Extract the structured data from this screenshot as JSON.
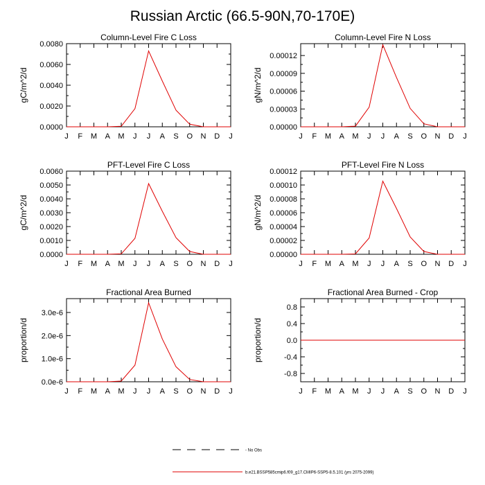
{
  "title": "Russian Arctic (66.5-90N,70-170E)",
  "months": [
    "J",
    "F",
    "M",
    "A",
    "M",
    "J",
    "J",
    "A",
    "S",
    "O",
    "N",
    "D",
    "J"
  ],
  "colors": {
    "series": "#e00000",
    "axis": "#000000"
  },
  "legend": {
    "items": [
      {
        "label": "No Obs",
        "style": "dashed",
        "color": "#000000"
      },
      {
        "label": "b.e21.BSSP585cmip6.f09_g17.CMIP6-SSP5-8.5.101 (yrs 2075-2099)",
        "style": "solid",
        "color": "#e00000"
      }
    ]
  },
  "chart_data": [
    {
      "type": "line",
      "title": "Column-Level Fire C Loss",
      "ylabel": "gC/m^2/d",
      "xlabel": "",
      "ylim": [
        0,
        0.008
      ],
      "yticks": [
        0,
        0.002,
        0.004,
        0.006,
        0.008
      ],
      "ytick_labels": [
        "0.0000",
        "0.0020",
        "0.0040",
        "0.0060",
        "0.0080"
      ],
      "x": [
        "J",
        "F",
        "M",
        "A",
        "M",
        "J",
        "J",
        "A",
        "S",
        "O",
        "N",
        "D",
        "J"
      ],
      "series": [
        {
          "values": [
            0,
            0,
            0,
            0,
            5e-05,
            0.00175,
            0.0073,
            0.0044,
            0.0016,
            0.00025,
            0,
            0,
            0
          ]
        }
      ]
    },
    {
      "type": "line",
      "title": "Column-Level Fire N Loss",
      "ylabel": "gN/m^2/d",
      "xlabel": "",
      "ylim": [
        0,
        0.00014
      ],
      "yticks": [
        0,
        3e-05,
        6e-05,
        9e-05,
        0.00012
      ],
      "ytick_labels": [
        "0.00000",
        "0.00003",
        "0.00006",
        "0.00009",
        "0.00012"
      ],
      "x": [
        "J",
        "F",
        "M",
        "A",
        "M",
        "J",
        "J",
        "A",
        "S",
        "O",
        "N",
        "D",
        "J"
      ],
      "series": [
        {
          "values": [
            0,
            0,
            0,
            0,
            1e-06,
            3.3e-05,
            0.000138,
            8.3e-05,
            3.1e-05,
            5e-06,
            0,
            0,
            0
          ]
        }
      ]
    },
    {
      "type": "line",
      "title": "PFT-Level Fire C Loss",
      "ylabel": "gC/m^2/d",
      "xlabel": "",
      "ylim": [
        0,
        0.006
      ],
      "yticks": [
        0,
        0.001,
        0.002,
        0.003,
        0.004,
        0.005,
        0.006
      ],
      "ytick_labels": [
        "0.0000",
        "0.0010",
        "0.0020",
        "0.0030",
        "0.0040",
        "0.0050",
        "0.0060"
      ],
      "x": [
        "J",
        "F",
        "M",
        "A",
        "M",
        "J",
        "J",
        "A",
        "S",
        "O",
        "N",
        "D",
        "J"
      ],
      "series": [
        {
          "values": [
            0,
            0,
            0,
            0,
            3e-05,
            0.00115,
            0.0051,
            0.0031,
            0.0012,
            0.0002,
            0,
            0,
            0
          ]
        }
      ]
    },
    {
      "type": "line",
      "title": "PFT-Level Fire N Loss",
      "ylabel": "gN/m^2/d",
      "xlabel": "",
      "ylim": [
        0,
        0.00012
      ],
      "yticks": [
        0,
        2e-05,
        4e-05,
        6e-05,
        8e-05,
        0.0001,
        0.00012
      ],
      "ytick_labels": [
        "0.00000",
        "0.00002",
        "0.00004",
        "0.00006",
        "0.00008",
        "0.00010",
        "0.00012"
      ],
      "x": [
        "J",
        "F",
        "M",
        "A",
        "M",
        "J",
        "J",
        "A",
        "S",
        "O",
        "N",
        "D",
        "J"
      ],
      "series": [
        {
          "values": [
            0,
            0,
            0,
            0,
            5e-07,
            2.35e-05,
            0.0001055,
            6.6e-05,
            2.5e-05,
            4e-06,
            0,
            0,
            0
          ]
        }
      ]
    },
    {
      "type": "line",
      "title": "Fractional Area Burned",
      "ylabel": "proportion/d",
      "xlabel": "",
      "ylim": [
        0,
        3.6e-06
      ],
      "yticks": [
        0,
        1e-06,
        2e-06,
        3e-06
      ],
      "ytick_labels": [
        "0.0e-6",
        "1.0e-6",
        "2.0e-6",
        "3.0e-6"
      ],
      "x": [
        "J",
        "F",
        "M",
        "A",
        "M",
        "J",
        "J",
        "A",
        "S",
        "O",
        "N",
        "D",
        "J"
      ],
      "series": [
        {
          "values": [
            0,
            0,
            0,
            0,
            3e-08,
            7.2e-07,
            3.42e-06,
            1.85e-06,
            6.5e-07,
            1e-07,
            0,
            0,
            0
          ]
        }
      ]
    },
    {
      "type": "line",
      "title": "Fractional Area Burned - Crop",
      "ylabel": "proportion/d",
      "xlabel": "",
      "ylim": [
        -1,
        1
      ],
      "yticks": [
        -0.8,
        -0.4,
        0,
        0.4,
        0.8
      ],
      "ytick_labels": [
        "-0.8",
        "-0.4",
        "0.0",
        "0.4",
        "0.8"
      ],
      "x": [
        "J",
        "F",
        "M",
        "A",
        "M",
        "J",
        "J",
        "A",
        "S",
        "O",
        "N",
        "D",
        "J"
      ],
      "series": [
        {
          "values": [
            0,
            0,
            0,
            0,
            0,
            0,
            0,
            0,
            0,
            0,
            0,
            0,
            0
          ]
        }
      ]
    }
  ]
}
